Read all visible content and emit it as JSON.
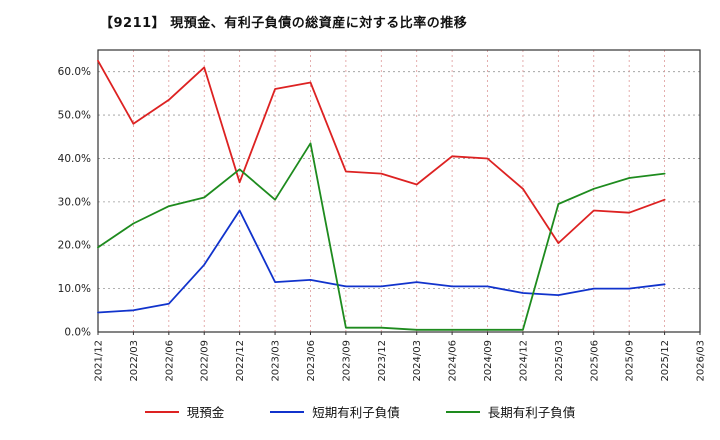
{
  "header": {
    "title": "【9211】 現預金、有利子負債の総資産に対する比率の推移"
  },
  "chart_data": {
    "type": "line",
    "title": "【9211】 現預金、有利子負債の総資産に対する比率の推移",
    "xlabel": "",
    "ylabel": "",
    "ylim": [
      0,
      65
    ],
    "yticks": [
      0,
      10,
      20,
      30,
      40,
      50,
      60
    ],
    "ytick_format": "percent_one_decimal",
    "grid": "on",
    "legend_position": "bottom",
    "categories": [
      "2021/12",
      "2022/03",
      "2022/06",
      "2022/09",
      "2022/12",
      "2023/03",
      "2023/06",
      "2023/09",
      "2023/12",
      "2024/03",
      "2024/06",
      "2024/09",
      "2024/12",
      "2025/03",
      "2025/06",
      "2025/09",
      "2025/12",
      "2026/03"
    ],
    "series": [
      {
        "name": "現預金",
        "color": "#dd2222",
        "values": [
          62.5,
          48.0,
          53.5,
          61.0,
          34.5,
          56.0,
          57.5,
          37.0,
          36.5,
          34.0,
          40.5,
          40.0,
          33.0,
          20.5,
          28.0,
          27.5,
          30.5,
          null
        ]
      },
      {
        "name": "短期有利子負債",
        "color": "#1133cc",
        "values": [
          4.5,
          5.0,
          6.5,
          15.5,
          28.0,
          11.5,
          12.0,
          10.5,
          10.5,
          11.5,
          10.5,
          10.5,
          9.0,
          8.5,
          10.0,
          10.0,
          11.0,
          null
        ]
      },
      {
        "name": "長期有利子負債",
        "color": "#1e8b1e",
        "values": [
          19.5,
          25.0,
          29.0,
          31.0,
          37.5,
          30.5,
          43.5,
          1.0,
          1.0,
          0.5,
          0.5,
          0.5,
          0.5,
          29.5,
          33.0,
          35.5,
          36.5,
          null
        ]
      }
    ],
    "style": {
      "h_grid_color": "#999999",
      "v_grid_color": "#dd9999",
      "frame_color": "#333333",
      "tick_label_color": "#222222"
    }
  }
}
